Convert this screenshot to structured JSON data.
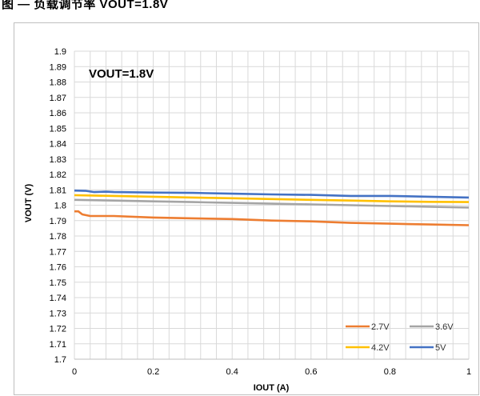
{
  "caption": "图 — 负载调节率 VOUT=1.8V",
  "chart_data": {
    "type": "line",
    "annotation": "VOUT=1.8V",
    "xlabel": "IOUT (A)",
    "ylabel": "VOUT (V)",
    "xlim": [
      0,
      1
    ],
    "ylim": [
      1.7,
      1.9
    ],
    "x_ticks": [
      "0",
      "0.2",
      "0.4",
      "0.6",
      "0.8",
      "1"
    ],
    "x_tick_values": [
      0,
      0.2,
      0.4,
      0.6,
      0.8,
      1
    ],
    "y_ticks": [
      "1.7",
      "1.71",
      "1.72",
      "1.73",
      "1.74",
      "1.75",
      "1.76",
      "1.77",
      "1.78",
      "1.79",
      "1.8",
      "1.81",
      "1.82",
      "1.83",
      "1.84",
      "1.85",
      "1.86",
      "1.87",
      "1.88",
      "1.89",
      "1.9"
    ],
    "y_tick_values": [
      1.7,
      1.71,
      1.72,
      1.73,
      1.74,
      1.75,
      1.76,
      1.77,
      1.78,
      1.79,
      1.8,
      1.81,
      1.82,
      1.83,
      1.84,
      1.85,
      1.86,
      1.87,
      1.88,
      1.89,
      1.9
    ],
    "x_minor_step": 0.04,
    "grid": true,
    "legend_position": "bottom-right",
    "series": [
      {
        "name": "2.7V",
        "color": "#ed7d31",
        "points": [
          [
            0,
            1.796
          ],
          [
            0.01,
            1.796
          ],
          [
            0.02,
            1.794
          ],
          [
            0.04,
            1.793
          ],
          [
            0.1,
            1.793
          ],
          [
            0.2,
            1.792
          ],
          [
            0.3,
            1.7915
          ],
          [
            0.4,
            1.791
          ],
          [
            0.5,
            1.79
          ],
          [
            0.6,
            1.7895
          ],
          [
            0.7,
            1.7885
          ],
          [
            0.8,
            1.788
          ],
          [
            0.9,
            1.7875
          ],
          [
            1.0,
            1.787
          ]
        ]
      },
      {
        "name": "3.6V",
        "color": "#a5a5a5",
        "points": [
          [
            0,
            1.8035
          ],
          [
            0.1,
            1.803
          ],
          [
            0.2,
            1.8025
          ],
          [
            0.3,
            1.802
          ],
          [
            0.4,
            1.8015
          ],
          [
            0.5,
            1.801
          ],
          [
            0.6,
            1.8005
          ],
          [
            0.7,
            1.8
          ],
          [
            0.8,
            1.7995
          ],
          [
            0.9,
            1.799
          ],
          [
            1.0,
            1.7985
          ]
        ]
      },
      {
        "name": "4.2V",
        "color": "#ffc000",
        "points": [
          [
            0,
            1.8065
          ],
          [
            0.1,
            1.806
          ],
          [
            0.2,
            1.8055
          ],
          [
            0.3,
            1.805
          ],
          [
            0.4,
            1.8045
          ],
          [
            0.5,
            1.804
          ],
          [
            0.6,
            1.8035
          ],
          [
            0.7,
            1.803
          ],
          [
            0.8,
            1.8025
          ],
          [
            0.9,
            1.8022
          ],
          [
            1.0,
            1.802
          ]
        ]
      },
      {
        "name": "5V",
        "color": "#4472c4",
        "points": [
          [
            0,
            1.8095
          ],
          [
            0.03,
            1.8093
          ],
          [
            0.05,
            1.8085
          ],
          [
            0.08,
            1.8088
          ],
          [
            0.1,
            1.8085
          ],
          [
            0.2,
            1.8082
          ],
          [
            0.3,
            1.808
          ],
          [
            0.4,
            1.8075
          ],
          [
            0.5,
            1.807
          ],
          [
            0.6,
            1.8067
          ],
          [
            0.7,
            1.806
          ],
          [
            0.8,
            1.806
          ],
          [
            0.9,
            1.8055
          ],
          [
            1.0,
            1.805
          ]
        ]
      }
    ]
  }
}
